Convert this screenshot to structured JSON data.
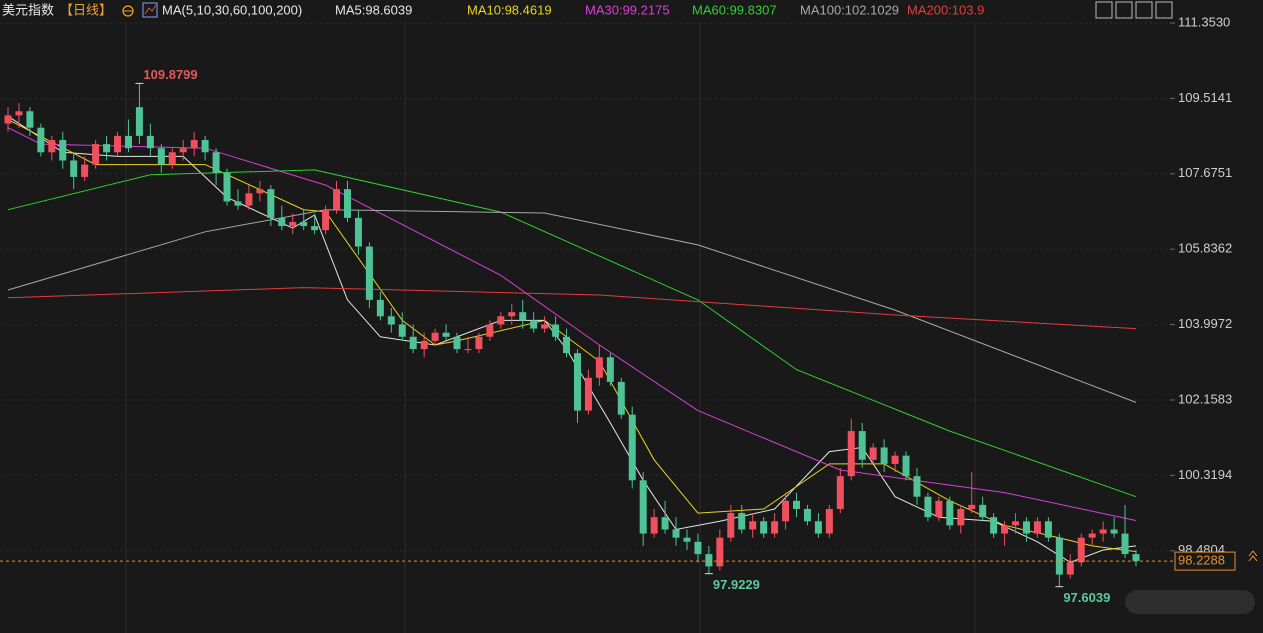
{
  "chart_data": {
    "type": "candlestick",
    "title": "美元指数",
    "period": "【日线】",
    "indicator": "MA(5,10,30,60,100,200)",
    "up_color": "#f0505e",
    "down_color": "#4fc395",
    "ylim": [
      96.475,
      111.914
    ],
    "yticks": [
      {
        "value": 111.353,
        "label": "111.3530"
      },
      109.5141,
      107.6751,
      105.8362,
      103.9972,
      102.1583,
      100.3194,
      98.4804
    ],
    "grid": true,
    "ohlc": [
      [
        108.9,
        109.3,
        108.7,
        109.1
      ],
      [
        109.1,
        109.4,
        108.8,
        109.2
      ],
      [
        109.2,
        109.3,
        108.6,
        108.8
      ],
      [
        108.8,
        108.9,
        108.1,
        108.2
      ],
      [
        108.2,
        108.6,
        108.0,
        108.5
      ],
      [
        108.5,
        108.7,
        107.8,
        108.0
      ],
      [
        108.0,
        108.2,
        107.3,
        107.6
      ],
      [
        107.6,
        108.1,
        107.5,
        107.9
      ],
      [
        107.9,
        108.5,
        107.8,
        108.4
      ],
      [
        108.4,
        108.6,
        108.0,
        108.2
      ],
      [
        108.2,
        108.7,
        108.1,
        108.6
      ],
      [
        108.6,
        109.0,
        108.2,
        108.3
      ],
      [
        109.3,
        109.8799,
        108.4,
        108.6
      ],
      [
        108.6,
        108.9,
        108.1,
        108.3
      ],
      [
        108.3,
        108.4,
        107.7,
        107.9
      ],
      [
        107.9,
        108.3,
        107.8,
        108.2
      ],
      [
        108.2,
        108.5,
        108.0,
        108.3
      ],
      [
        108.3,
        108.7,
        108.1,
        108.5
      ],
      [
        108.5,
        108.6,
        108.0,
        108.2
      ],
      [
        108.2,
        108.3,
        107.4,
        107.7
      ],
      [
        107.7,
        107.8,
        106.9,
        107.0
      ],
      [
        107.0,
        107.3,
        106.8,
        106.9
      ],
      [
        106.9,
        107.4,
        106.8,
        107.2
      ],
      [
        107.2,
        107.5,
        107.0,
        107.3
      ],
      [
        107.3,
        107.4,
        106.4,
        106.6
      ],
      [
        106.6,
        106.9,
        106.3,
        106.4
      ],
      [
        106.4,
        106.7,
        106.2,
        106.5
      ],
      [
        106.5,
        106.8,
        106.3,
        106.4
      ],
      [
        106.4,
        106.7,
        106.2,
        106.3
      ],
      [
        106.3,
        106.9,
        106.2,
        106.8
      ],
      [
        106.8,
        107.5,
        106.7,
        107.3
      ],
      [
        107.3,
        107.5,
        106.5,
        106.6
      ],
      [
        106.6,
        106.8,
        105.7,
        105.9
      ],
      [
        105.9,
        106.0,
        104.4,
        104.6
      ],
      [
        104.6,
        104.8,
        104.1,
        104.2
      ],
      [
        104.2,
        104.4,
        103.8,
        104.0
      ],
      [
        104.0,
        104.3,
        103.6,
        103.7
      ],
      [
        103.7,
        104.0,
        103.3,
        103.4
      ],
      [
        103.4,
        103.8,
        103.2,
        103.6
      ],
      [
        103.6,
        103.9,
        103.5,
        103.8
      ],
      [
        103.8,
        104.0,
        103.6,
        103.7
      ],
      [
        103.7,
        103.8,
        103.3,
        103.4
      ],
      [
        103.4,
        103.7,
        103.3,
        103.4
      ],
      [
        103.4,
        103.8,
        103.3,
        103.7
      ],
      [
        103.7,
        104.1,
        103.6,
        104.0
      ],
      [
        104.0,
        104.3,
        103.9,
        104.2
      ],
      [
        104.2,
        104.5,
        104.0,
        104.3
      ],
      [
        104.3,
        104.6,
        103.9,
        104.1
      ],
      [
        104.1,
        104.3,
        103.8,
        103.9
      ],
      [
        103.9,
        104.2,
        103.8,
        104.0
      ],
      [
        104.0,
        104.2,
        103.6,
        103.7
      ],
      [
        103.7,
        103.9,
        103.2,
        103.3
      ],
      [
        103.3,
        103.4,
        101.6,
        101.9
      ],
      [
        101.9,
        102.9,
        101.8,
        102.7
      ],
      [
        102.7,
        103.5,
        102.5,
        103.2
      ],
      [
        103.2,
        103.3,
        102.5,
        102.6
      ],
      [
        102.6,
        102.7,
        101.7,
        101.8
      ],
      [
        101.8,
        102.0,
        100.0,
        100.2
      ],
      [
        100.2,
        100.4,
        98.6,
        98.9
      ],
      [
        98.9,
        99.5,
        98.8,
        99.3
      ],
      [
        99.3,
        99.7,
        98.9,
        99.0
      ],
      [
        99.0,
        99.3,
        98.6,
        98.8
      ],
      [
        98.8,
        99.0,
        98.5,
        98.7
      ],
      [
        98.7,
        98.9,
        98.2,
        98.4
      ],
      [
        98.4,
        98.6,
        97.9229,
        98.1
      ],
      [
        98.1,
        99.0,
        98.0,
        98.8
      ],
      [
        98.8,
        99.6,
        98.7,
        99.4
      ],
      [
        99.4,
        99.6,
        98.9,
        99.0
      ],
      [
        99.0,
        99.4,
        98.8,
        99.2
      ],
      [
        99.2,
        99.3,
        98.8,
        98.9
      ],
      [
        98.9,
        99.4,
        98.8,
        99.2
      ],
      [
        99.2,
        99.9,
        99.0,
        99.7
      ],
      [
        99.7,
        99.9,
        99.3,
        99.5
      ],
      [
        99.5,
        99.6,
        99.1,
        99.2
      ],
      [
        99.2,
        99.4,
        98.8,
        98.9
      ],
      [
        98.9,
        99.6,
        98.8,
        99.5
      ],
      [
        99.5,
        100.5,
        99.4,
        100.3
      ],
      [
        100.3,
        101.7,
        100.2,
        101.4
      ],
      [
        101.4,
        101.6,
        100.5,
        100.7
      ],
      [
        100.7,
        101.1,
        100.6,
        101.0
      ],
      [
        101.0,
        101.2,
        100.4,
        100.6
      ],
      [
        100.6,
        100.9,
        100.4,
        100.8
      ],
      [
        100.8,
        100.9,
        100.2,
        100.3
      ],
      [
        100.3,
        100.5,
        99.6,
        99.8
      ],
      [
        99.8,
        99.9,
        99.2,
        99.3
      ],
      [
        99.3,
        99.8,
        99.2,
        99.7
      ],
      [
        99.7,
        99.8,
        99.0,
        99.1
      ],
      [
        99.1,
        99.6,
        98.9,
        99.5
      ],
      [
        99.5,
        100.4,
        99.4,
        99.6
      ],
      [
        99.6,
        99.8,
        99.2,
        99.3
      ],
      [
        99.3,
        99.4,
        98.8,
        98.9
      ],
      [
        98.9,
        99.2,
        98.6,
        99.1
      ],
      [
        99.1,
        99.4,
        98.9,
        99.2
      ],
      [
        99.2,
        99.3,
        98.7,
        98.9
      ],
      [
        98.9,
        99.3,
        98.8,
        99.2
      ],
      [
        99.2,
        99.3,
        98.7,
        98.8
      ],
      [
        98.8,
        98.9,
        97.6039,
        97.9
      ],
      [
        97.9,
        98.4,
        97.8,
        98.2
      ],
      [
        98.2,
        98.9,
        98.1,
        98.8
      ],
      [
        98.8,
        99.0,
        98.6,
        98.9
      ],
      [
        98.9,
        99.2,
        98.7,
        99.0
      ],
      [
        99.0,
        99.3,
        98.8,
        98.9
      ],
      [
        98.9,
        99.6,
        98.3,
        98.4
      ],
      [
        98.4,
        98.5,
        98.1,
        98.2288
      ]
    ],
    "series": [
      {
        "name": "MA5:98.6039",
        "color": "#e6e6e6",
        "x": [
          0,
          5,
          10,
          16,
          20,
          26,
          28,
          31,
          34,
          39,
          45,
          49,
          51,
          55,
          58,
          61,
          65,
          70,
          75,
          78,
          81,
          85,
          90,
          94,
          97,
          100,
          103
        ],
        "values": [
          109.08,
          108.2,
          108.1,
          108.1,
          107.1,
          106.35,
          106.67,
          104.6,
          103.7,
          103.5,
          104.1,
          104.1,
          103.4,
          101.6,
          100.2,
          99.0,
          99.2,
          99.5,
          100.9,
          101.0,
          99.8,
          99.3,
          99.2,
          98.7,
          98.2,
          98.5,
          98.6
        ]
      },
      {
        "name": "MA10:98.4619",
        "color": "#e8d51c",
        "x": [
          0,
          8,
          18,
          27,
          29,
          36,
          39,
          41,
          49,
          54,
          59,
          63,
          69,
          75,
          80,
          86,
          91,
          95,
          99,
          103
        ],
        "values": [
          109.0,
          107.9,
          107.9,
          106.8,
          106.75,
          104.1,
          103.5,
          103.6,
          104.1,
          103.1,
          100.7,
          99.4,
          99.5,
          100.6,
          100.6,
          99.7,
          99.1,
          98.86,
          98.6,
          98.46
        ]
      },
      {
        "name": "MA30:99.2175",
        "color": "#d83fd8",
        "x": [
          0,
          3,
          18,
          29,
          45,
          54,
          63,
          76,
          91,
          103
        ],
        "values": [
          108.8,
          108.4,
          108.3,
          107.4,
          105.2,
          103.5,
          101.9,
          100.45,
          99.9,
          99.22
        ]
      },
      {
        "name": "MA60:99.8307",
        "color": "#2fcf2f",
        "x": [
          0,
          13,
          28,
          45,
          63,
          72,
          86,
          103
        ],
        "values": [
          106.8,
          107.65,
          107.77,
          106.74,
          104.6,
          102.9,
          101.4,
          99.8
        ]
      },
      {
        "name": "MA100:102.1029",
        "color": "#a8a8a8",
        "x": [
          0,
          18,
          29,
          49,
          63,
          81,
          103
        ],
        "values": [
          104.84,
          106.26,
          106.8,
          106.72,
          105.94,
          104.35,
          102.1
        ]
      },
      {
        "name": "MA200:103.9",
        "color": "#e43c3c",
        "x": [
          0,
          27,
          54,
          81,
          103
        ],
        "values": [
          104.65,
          104.9,
          104.72,
          104.23,
          103.9
        ]
      }
    ]
  }
}
